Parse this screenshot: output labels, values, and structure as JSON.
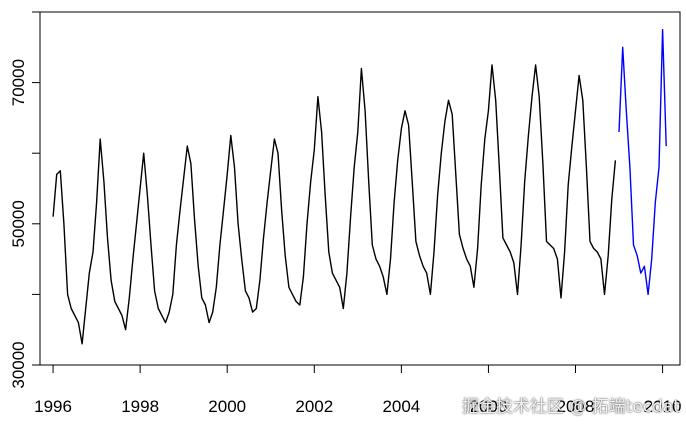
{
  "chart_data": {
    "type": "line",
    "title": "",
    "xlabel": "",
    "ylabel": "",
    "xlim": [
      1995.7,
      2010.4
    ],
    "ylim": [
      30000,
      80000
    ],
    "x_ticks": [
      1996,
      1998,
      2000,
      2002,
      2004,
      2006,
      2008,
      2010
    ],
    "x_tick_labels": [
      "1996",
      "1998",
      "2000",
      "2002",
      "2004",
      "2006",
      "2008",
      "2010"
    ],
    "y_ticks": [
      30000,
      50000,
      70000
    ],
    "y_tick_labels": [
      "30000",
      "50000",
      "70000"
    ],
    "grid": false,
    "series": [
      {
        "color": "#000000",
        "x": [
          1996.0,
          1996.083,
          1996.167,
          1996.25,
          1996.333,
          1996.417,
          1996.5,
          1996.583,
          1996.667,
          1996.75,
          1996.833,
          1996.917,
          1997.0,
          1997.083,
          1997.167,
          1997.25,
          1997.333,
          1997.417,
          1997.5,
          1997.583,
          1997.667,
          1997.75,
          1997.833,
          1997.917,
          1998.0,
          1998.083,
          1998.167,
          1998.25,
          1998.333,
          1998.417,
          1998.5,
          1998.583,
          1998.667,
          1998.75,
          1998.833,
          1998.917,
          1999.0,
          1999.083,
          1999.167,
          1999.25,
          1999.333,
          1999.417,
          1999.5,
          1999.583,
          1999.667,
          1999.75,
          1999.833,
          1999.917,
          2000.0,
          2000.083,
          2000.167,
          2000.25,
          2000.333,
          2000.417,
          2000.5,
          2000.583,
          2000.667,
          2000.75,
          2000.833,
          2000.917,
          2001.0,
          2001.083,
          2001.167,
          2001.25,
          2001.333,
          2001.417,
          2001.5,
          2001.583,
          2001.667,
          2001.75,
          2001.833,
          2001.917,
          2002.0,
          2002.083,
          2002.167,
          2002.25,
          2002.333,
          2002.417,
          2002.5,
          2002.583,
          2002.667,
          2002.75,
          2002.833,
          2002.917,
          2003.0,
          2003.083,
          2003.167,
          2003.25,
          2003.333,
          2003.417,
          2003.5,
          2003.583,
          2003.667,
          2003.75,
          2003.833,
          2003.917,
          2004.0,
          2004.083,
          2004.167,
          2004.25,
          2004.333,
          2004.417,
          2004.5,
          2004.583,
          2004.667,
          2004.75,
          2004.833,
          2004.917,
          2005.0,
          2005.083,
          2005.167,
          2005.25,
          2005.333,
          2005.417,
          2005.5,
          2005.583,
          2005.667,
          2005.75,
          2005.833,
          2005.917,
          2006.0,
          2006.083,
          2006.167,
          2006.25,
          2006.333,
          2006.417,
          2006.5,
          2006.583,
          2006.667,
          2006.75,
          2006.833,
          2006.917,
          2007.0,
          2007.083,
          2007.167,
          2007.25,
          2007.333,
          2007.417,
          2007.5,
          2007.583,
          2007.667,
          2007.75,
          2007.833,
          2007.917,
          2008.0,
          2008.083,
          2008.167,
          2008.25,
          2008.333,
          2008.417,
          2008.5,
          2008.583,
          2008.667,
          2008.75,
          2008.833,
          2008.917
        ],
        "y": [
          51000,
          57000,
          57500,
          50000,
          40000,
          38000,
          37000,
          36000,
          33000,
          38000,
          43000,
          46000,
          53000,
          62000,
          56000,
          48000,
          42000,
          39000,
          38000,
          37000,
          35000,
          39500,
          45000,
          50000,
          55000,
          60000,
          54000,
          47000,
          40500,
          38000,
          37000,
          36000,
          37500,
          40000,
          47000,
          52000,
          56500,
          61000,
          58500,
          50500,
          44000,
          39500,
          38500,
          36000,
          37500,
          41000,
          47000,
          52000,
          57000,
          62500,
          58000,
          50000,
          45000,
          40500,
          39500,
          37500,
          38000,
          42000,
          48000,
          53000,
          57500,
          62000,
          60000,
          52000,
          45500,
          41000,
          40000,
          39000,
          38500,
          42500,
          50000,
          56000,
          60500,
          68000,
          63000,
          54000,
          46000,
          43000,
          42000,
          41000,
          38000,
          43000,
          51000,
          58000,
          63000,
          72000,
          66000,
          56000,
          47000,
          45000,
          44000,
          42500,
          40000,
          45000,
          53000,
          59000,
          63500,
          66000,
          64000,
          56000,
          47500,
          45500,
          44000,
          43000,
          40000,
          46000,
          54000,
          60000,
          64500,
          67500,
          65500,
          57000,
          48500,
          46500,
          45000,
          44000,
          41000,
          46500,
          55500,
          62000,
          66000,
          72500,
          67500,
          58000,
          48000,
          47000,
          46000,
          44500,
          40000,
          47000,
          56000,
          62500,
          68000,
          72500,
          68000,
          58500,
          47500,
          47000,
          46500,
          45000,
          39500,
          46000,
          55500,
          61000,
          66000,
          71000,
          67500,
          58000,
          47500,
          46500,
          46000,
          45000,
          40000,
          45500,
          53500,
          59000
        ]
      },
      {
        "color": "#0000ff",
        "x": [
          2009.0,
          2009.083,
          2009.167,
          2009.25,
          2009.333,
          2009.417,
          2009.5,
          2009.583,
          2009.667,
          2009.75,
          2009.833,
          2009.917,
          2010.0,
          2010.083
        ],
        "y": [
          63000,
          75000,
          66000,
          58000,
          47000,
          45500,
          43000,
          44000,
          40000,
          45000,
          53000,
          58000,
          77500,
          61000
        ]
      }
    ],
    "annotations": [
      "掘金技术社区 @ 拓端tecdat"
    ]
  }
}
